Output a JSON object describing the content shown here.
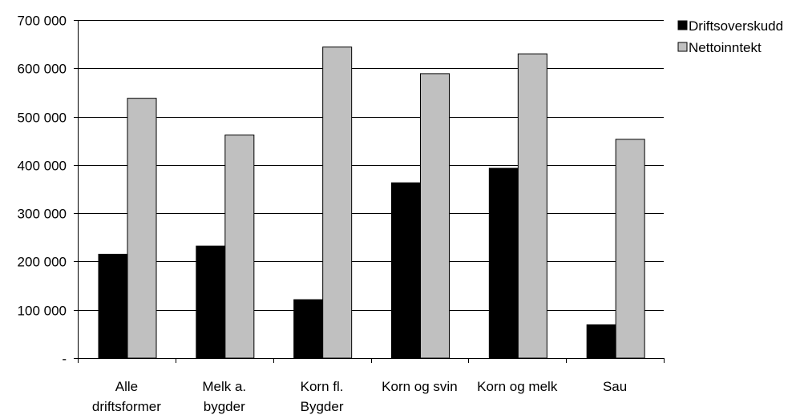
{
  "chart_data": {
    "type": "bar",
    "categories": [
      [
        "Alle",
        "driftsformer"
      ],
      [
        "Melk a.",
        "bygder"
      ],
      [
        "Korn fl.",
        "Bygder"
      ],
      [
        "Korn og svin"
      ],
      [
        "Korn og melk"
      ],
      [
        "Sau"
      ]
    ],
    "series": [
      {
        "name": "Driftsoverskudd",
        "color": "#000000",
        "values": [
          215000,
          232000,
          121000,
          363000,
          393000,
          69000
        ]
      },
      {
        "name": "Nettoinntekt",
        "color": "#c0c0c0",
        "values": [
          538000,
          462000,
          644000,
          589000,
          630000,
          453000
        ]
      }
    ],
    "yticks": [
      {
        "value": 0,
        "label": "-"
      },
      {
        "value": 100000,
        "label": "100 000"
      },
      {
        "value": 200000,
        "label": "200 000"
      },
      {
        "value": 300000,
        "label": "300 000"
      },
      {
        "value": 400000,
        "label": "400 000"
      },
      {
        "value": 500000,
        "label": "500 000"
      },
      {
        "value": 600000,
        "label": "600 000"
      },
      {
        "value": 700000,
        "label": "700 000"
      }
    ],
    "ylim": [
      0,
      700000
    ],
    "grid": true,
    "legend_position": "right",
    "title": "",
    "xlabel": "",
    "ylabel": ""
  }
}
